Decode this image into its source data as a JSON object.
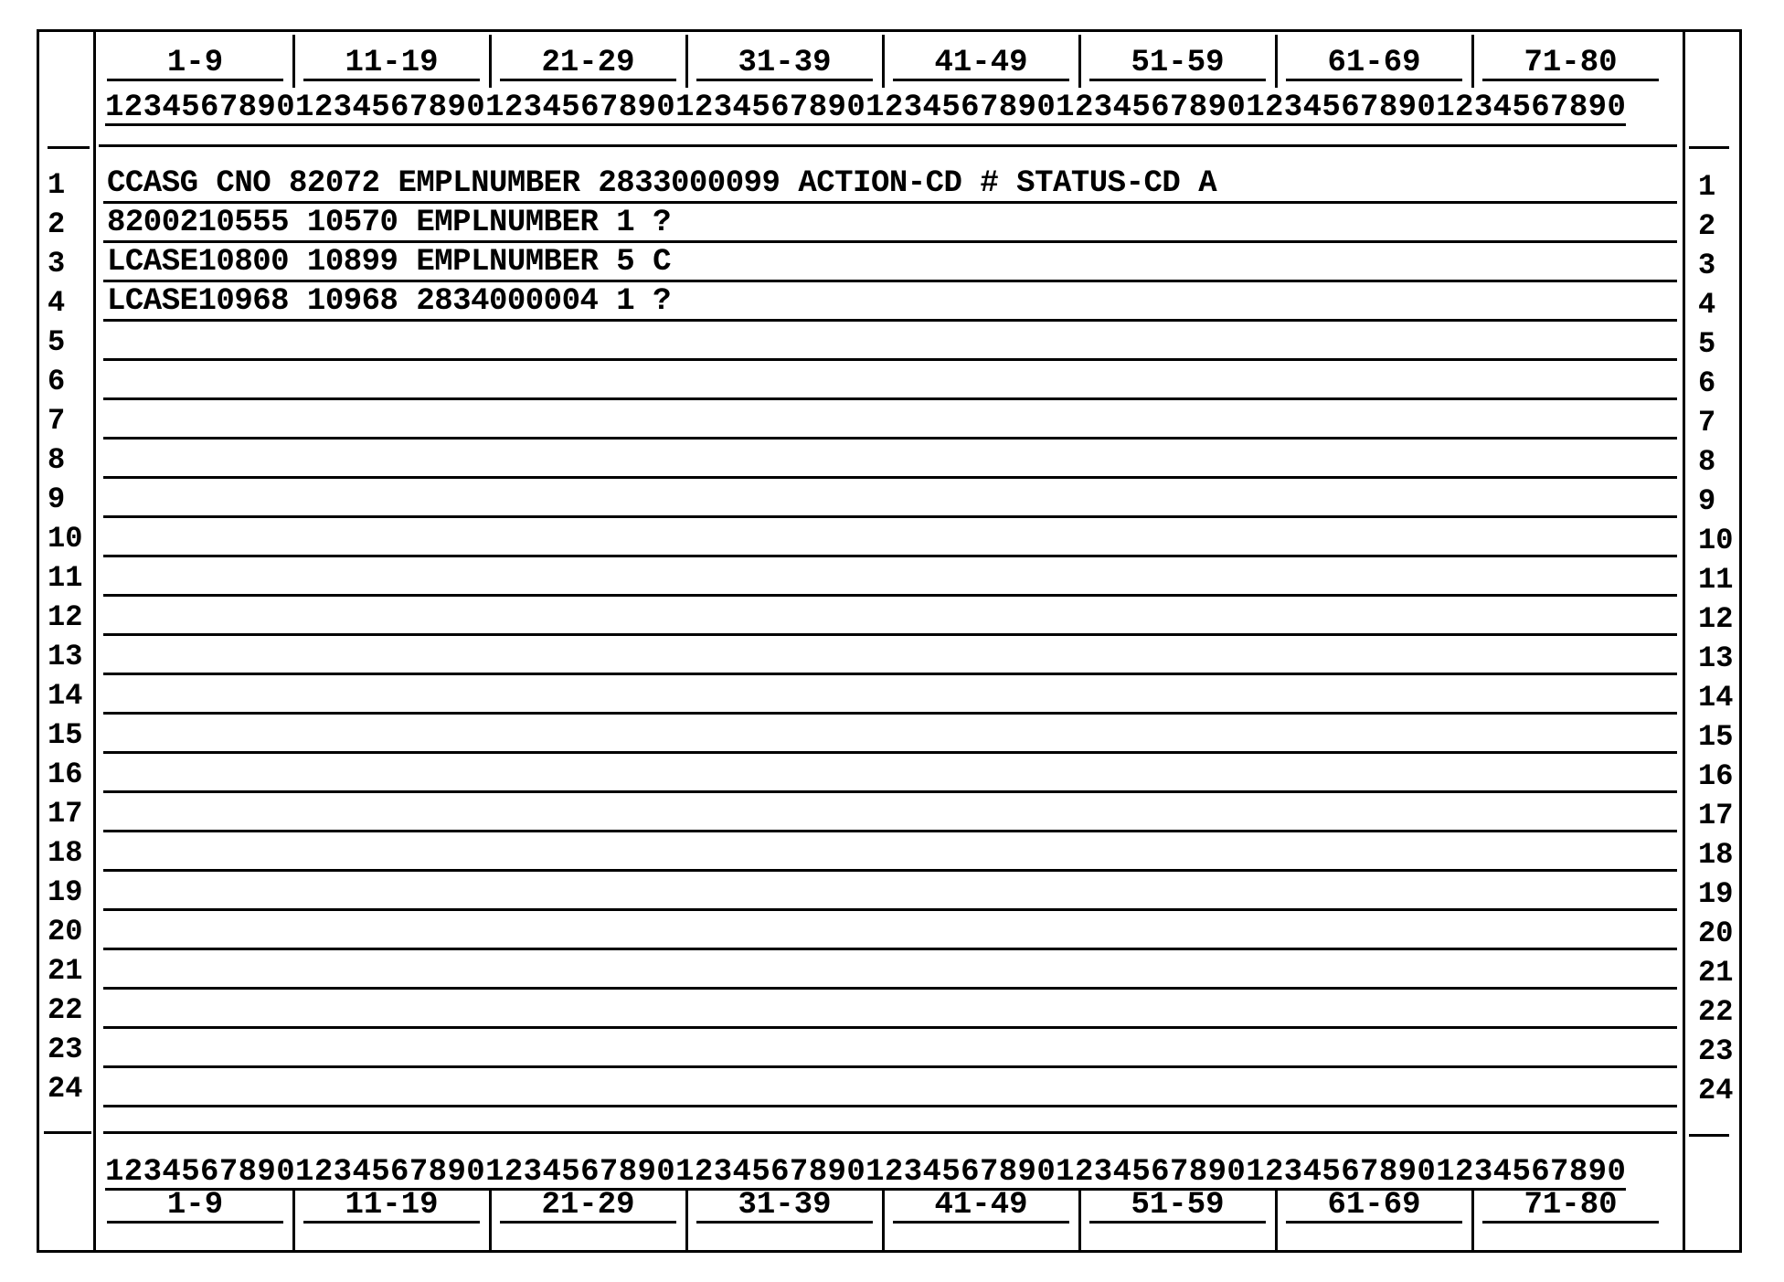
{
  "ruler": {
    "column_groups": [
      "1-9",
      "11-19",
      "21-29",
      "31-39",
      "41-49",
      "51-59",
      "61-69",
      "71-80"
    ],
    "digits": "12345678901234567890123456789012345678901234567890123456789012345678901234567890"
  },
  "rows": [
    {
      "number": "1",
      "text": "CCASG CNO 82072 EMPLNUMBER 2833000099 ACTION-CD # STATUS-CD A"
    },
    {
      "number": "2",
      "text": "8200210555 10570 EMPLNUMBER 1 ?"
    },
    {
      "number": "3",
      "text": "LCASE10800 10899 EMPLNUMBER 5 C"
    },
    {
      "number": "4",
      "text": "LCASE10968 10968 2834000004 1 ?"
    },
    {
      "number": "5",
      "text": ""
    },
    {
      "number": "6",
      "text": ""
    },
    {
      "number": "7",
      "text": ""
    },
    {
      "number": "8",
      "text": ""
    },
    {
      "number": "9",
      "text": ""
    },
    {
      "number": "10",
      "text": ""
    },
    {
      "number": "11",
      "text": ""
    },
    {
      "number": "12",
      "text": ""
    },
    {
      "number": "13",
      "text": ""
    },
    {
      "number": "14",
      "text": ""
    },
    {
      "number": "15",
      "text": ""
    },
    {
      "number": "16",
      "text": ""
    },
    {
      "number": "17",
      "text": ""
    },
    {
      "number": "18",
      "text": ""
    },
    {
      "number": "19",
      "text": ""
    },
    {
      "number": "20",
      "text": ""
    },
    {
      "number": "21",
      "text": ""
    },
    {
      "number": "22",
      "text": ""
    },
    {
      "number": "23",
      "text": ""
    },
    {
      "number": "24",
      "text": ""
    }
  ]
}
